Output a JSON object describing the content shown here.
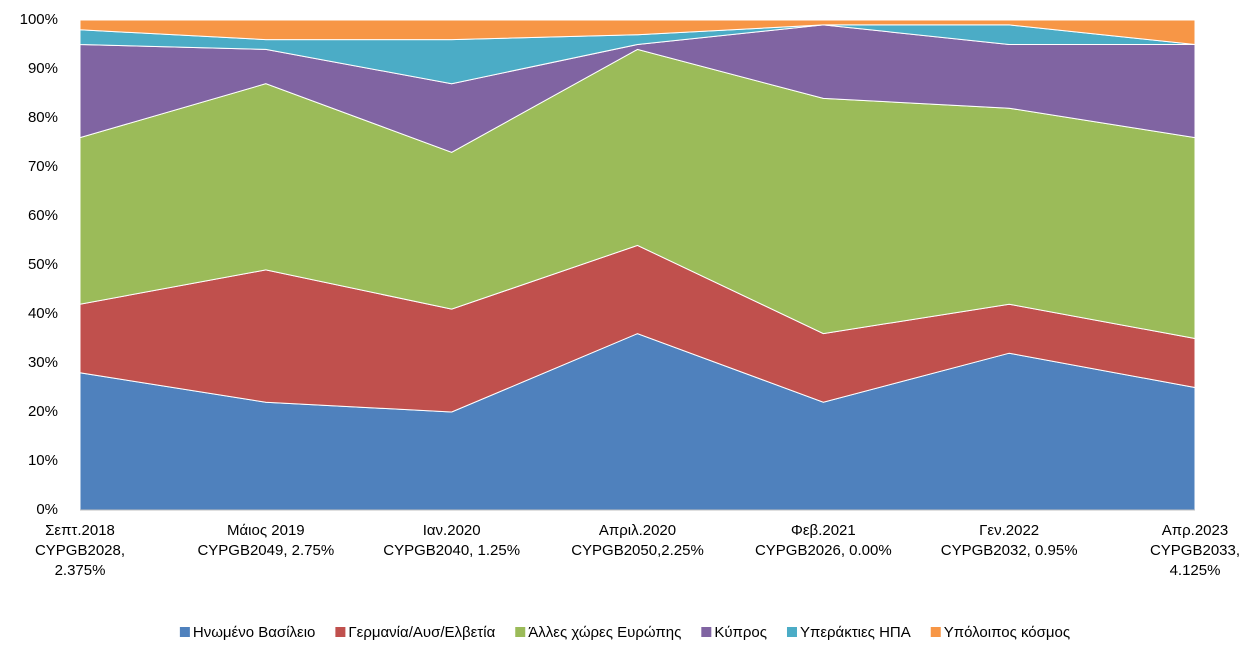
{
  "chart_data": {
    "type": "stacked_area",
    "categories": [
      [
        "Σεπτ.2018",
        "CYPGB2028,",
        "2.375%"
      ],
      [
        "Μάιος 2019",
        "CYPGB2049, 2.75%"
      ],
      [
        "Ιαν.2020",
        "CYPGB2040, 1.25%"
      ],
      [
        "Απριλ.2020",
        "CYPGB2050,2.25%"
      ],
      [
        "Φεβ.2021",
        "CYPGB2026, 0.00%"
      ],
      [
        "Γεν.2022",
        "CYPGB2032, 0.95%"
      ],
      [
        "Απρ.2023",
        "CYPGB2033,",
        "4.125%"
      ]
    ],
    "series": [
      {
        "name": "Ηνωμένο Βασίλειο",
        "color": "#4f81bd",
        "values": [
          28,
          22,
          20,
          36,
          22,
          32,
          25
        ]
      },
      {
        "name": "Γερμανία/Αυσ/Ελβετία",
        "color": "#c0504d",
        "values": [
          14,
          27,
          21,
          18,
          14,
          10,
          10
        ]
      },
      {
        "name": "Άλλες χώρες Ευρώπης",
        "color": "#9bbb59",
        "values": [
          34,
          38,
          32,
          40,
          48,
          40,
          41
        ]
      },
      {
        "name": "Κύπρος",
        "color": "#8064a2",
        "values": [
          19,
          7,
          14,
          1,
          15,
          13,
          19
        ]
      },
      {
        "name": "Υπεράκτιες ΗΠΑ",
        "color": "#4bacc6",
        "values": [
          3,
          2,
          9,
          2,
          0,
          4,
          0
        ]
      },
      {
        "name": "Υπόλοιπος κόσμος",
        "color": "#f79646",
        "values": [
          2,
          4,
          4,
          3,
          1,
          1,
          5
        ]
      }
    ],
    "ylim": [
      0,
      100
    ],
    "yticks": [
      {
        "value": 0,
        "label": "0%"
      },
      {
        "value": 10,
        "label": "10%"
      },
      {
        "value": 20,
        "label": "20%"
      },
      {
        "value": 30,
        "label": "30%"
      },
      {
        "value": 40,
        "label": "40%"
      },
      {
        "value": 50,
        "label": "50%"
      },
      {
        "value": 60,
        "label": "60%"
      },
      {
        "value": 70,
        "label": "70%"
      },
      {
        "value": 80,
        "label": "80%"
      },
      {
        "value": 90,
        "label": "90%"
      },
      {
        "value": 100,
        "label": "100%"
      }
    ],
    "grid": false,
    "legend": "bottom"
  }
}
